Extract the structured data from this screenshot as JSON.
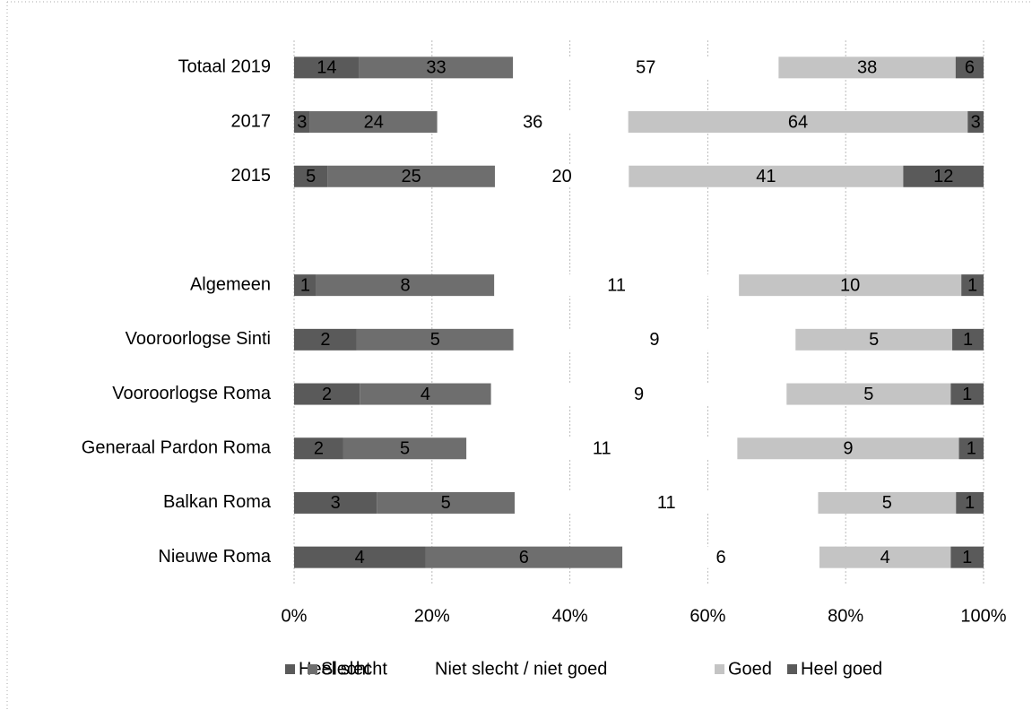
{
  "chart_data": {
    "type": "bar",
    "orientation": "horizontal",
    "stacked": "percent",
    "categories": [
      "Totaal 2019",
      "2017",
      "2015",
      null,
      "Algemeen",
      "Vooroorlogse Sinti",
      "Vooroorlogse Roma",
      "Generaal Pardon Roma",
      "Balkan Roma",
      "Nieuwe Roma"
    ],
    "series": [
      {
        "name": "Heel slecht",
        "color": "#5a5a5a",
        "values": [
          14,
          3,
          5,
          null,
          1,
          2,
          2,
          2,
          3,
          4
        ]
      },
      {
        "name": "Slecht",
        "color": "#6e6e6e",
        "values": [
          33,
          24,
          25,
          null,
          8,
          5,
          4,
          5,
          5,
          6
        ]
      },
      {
        "name": "Niet slecht / niet goed",
        "color": "#ffffff",
        "values": [
          57,
          36,
          20,
          null,
          11,
          9,
          9,
          11,
          11,
          6
        ]
      },
      {
        "name": "Goed",
        "color": "#c4c4c4",
        "values": [
          38,
          64,
          41,
          null,
          10,
          5,
          5,
          9,
          5,
          4
        ]
      },
      {
        "name": "Heel goed",
        "color": "#5a5a5a",
        "values": [
          6,
          3,
          12,
          null,
          1,
          1,
          1,
          1,
          1,
          1
        ]
      }
    ],
    "xlim": [
      0,
      100
    ],
    "xticks": [
      {
        "value": 0,
        "label": "0%"
      },
      {
        "value": 20,
        "label": "20%"
      },
      {
        "value": 40,
        "label": "40%"
      },
      {
        "value": 60,
        "label": "60%"
      },
      {
        "value": 80,
        "label": "80%"
      },
      {
        "value": 100,
        "label": "100%"
      }
    ],
    "grid": true,
    "legend": "bottom"
  }
}
